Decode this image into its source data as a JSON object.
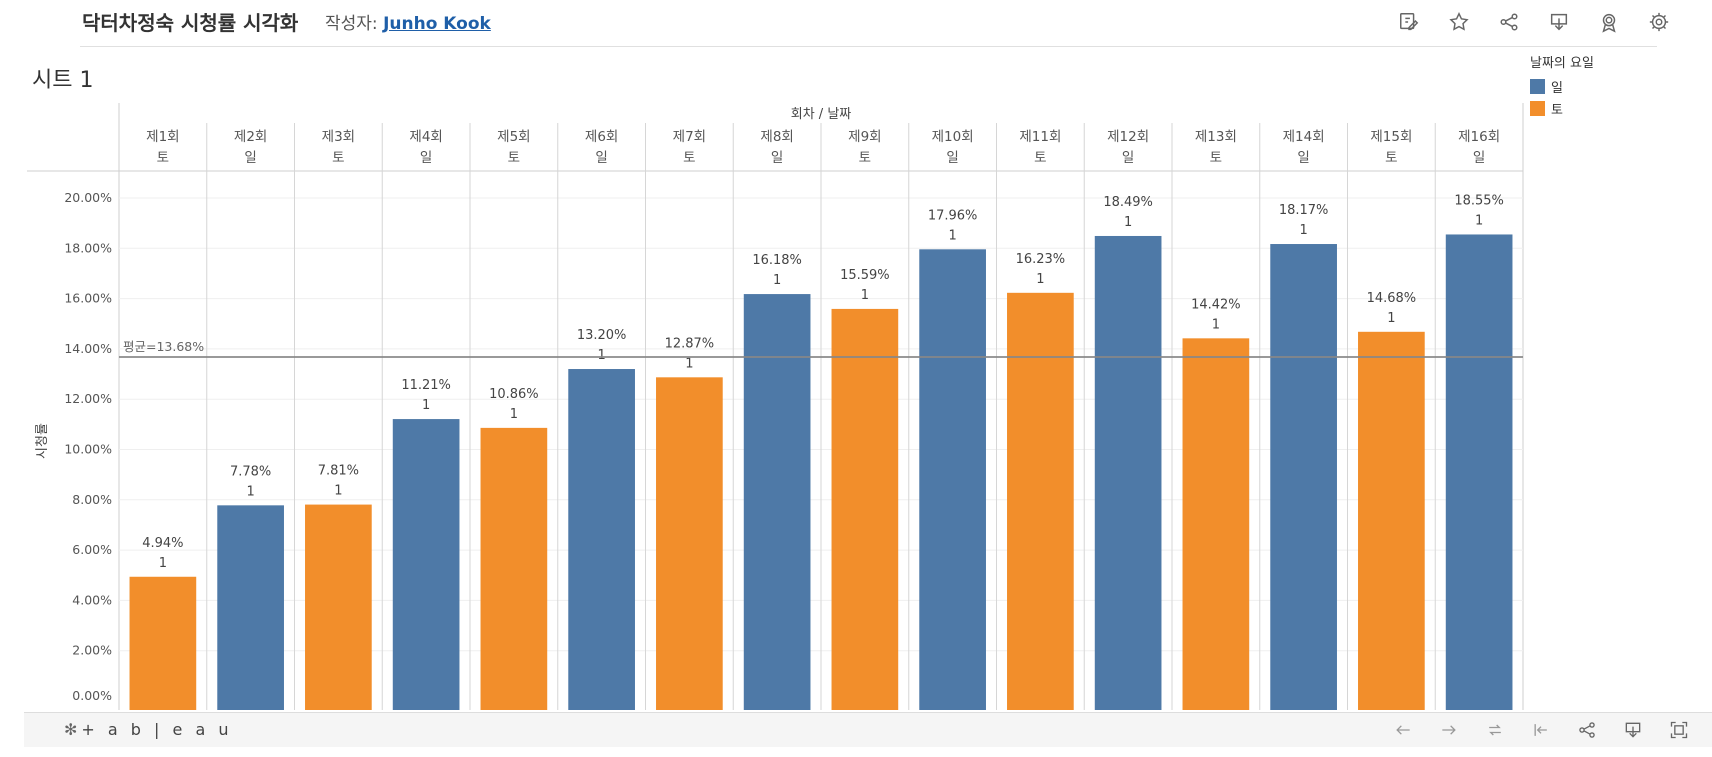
{
  "header": {
    "title": "닥터차정숙 시청률 시각화",
    "author_prefix": "작성자:",
    "author_name": "Junho Kook"
  },
  "toolbar": {
    "icons": [
      "edit-icon",
      "star-icon",
      "share-icon",
      "download-icon",
      "badge-icon",
      "settings-icon"
    ]
  },
  "sheet": {
    "title": "시트 1"
  },
  "legend": {
    "title": "날짜의 요일",
    "items": [
      {
        "label": "일",
        "color": "#4e79a7"
      },
      {
        "label": "토",
        "color": "#f28e2b"
      }
    ]
  },
  "chart_data": {
    "type": "bar",
    "title": "",
    "column_header": "회차 / 날짜",
    "categories": [
      "제1회",
      "제2회",
      "제3회",
      "제4회",
      "제5회",
      "제6회",
      "제7회",
      "제8회",
      "제9회",
      "제10회",
      "제11회",
      "제12회",
      "제13회",
      "제14회",
      "제15회",
      "제16회"
    ],
    "days": [
      "토",
      "일",
      "토",
      "일",
      "토",
      "일",
      "토",
      "일",
      "토",
      "일",
      "토",
      "일",
      "토",
      "일",
      "토",
      "일"
    ],
    "values": [
      4.94,
      7.78,
      7.81,
      11.21,
      10.86,
      13.2,
      12.87,
      16.18,
      15.59,
      17.96,
      16.23,
      18.49,
      14.42,
      18.17,
      14.68,
      18.55
    ],
    "value_labels": [
      "4.94%",
      "7.78%",
      "7.81%",
      "11.21%",
      "10.86%",
      "13.20%",
      "12.87%",
      "16.18%",
      "15.59%",
      "17.96%",
      "16.23%",
      "18.49%",
      "14.42%",
      "18.17%",
      "14.68%",
      "18.55%"
    ],
    "count_label": "1",
    "ylabel": "시청률",
    "ylim": [
      0,
      20
    ],
    "yticks": [
      "0.00%",
      "2.00%",
      "4.00%",
      "6.00%",
      "8.00%",
      "10.00%",
      "12.00%",
      "14.00%",
      "16.00%",
      "18.00%",
      "20.00%"
    ],
    "average": {
      "value": 13.68,
      "label": "평균=13.68%"
    },
    "colors": {
      "일": "#4e79a7",
      "토": "#f28e2b"
    },
    "grid": true,
    "legend_position": "right"
  },
  "footer": {
    "logo_text": "+ a b | e a u",
    "icons": [
      "undo-icon",
      "redo-icon",
      "revert-icon",
      "reset-icon",
      "share-icon",
      "download-icon",
      "fullscreen-icon"
    ]
  }
}
